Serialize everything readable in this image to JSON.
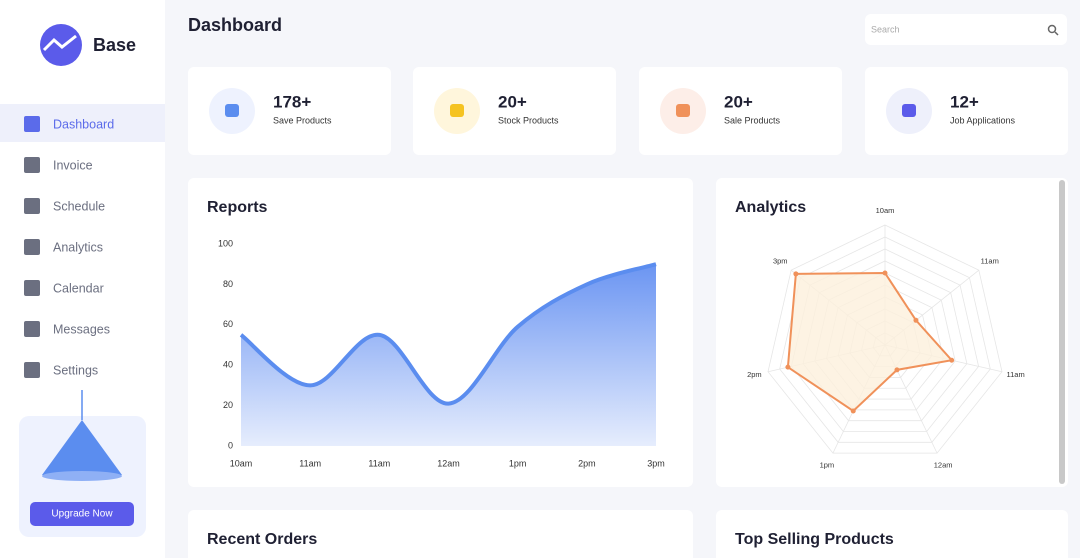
{
  "sidebar": {
    "brand": "Base",
    "menu": [
      "Dashboard",
      "Invoice",
      "Schedule",
      "Analytics",
      "Calendar",
      "Messages",
      "Settings"
    ],
    "upgrade_button": "Upgrade Now"
  },
  "header": {
    "title": "Dashboard",
    "search_placeholder": "Search"
  },
  "stats": [
    {
      "value": "178+",
      "label": "Save Products"
    },
    {
      "value": "20+",
      "label": "Stock Products"
    },
    {
      "value": "20+",
      "label": "Sale Products"
    },
    {
      "value": "12+",
      "label": "Job Applications"
    }
  ],
  "reports": {
    "title": "Reports",
    "chart_data": {
      "type": "area",
      "categories": [
        "10am",
        "11am",
        "11am",
        "12am",
        "1pm",
        "2pm",
        "3pm"
      ],
      "values": [
        55,
        30,
        55,
        21,
        59,
        80,
        90
      ],
      "color": "#5b8def",
      "ylim": [
        0,
        100
      ],
      "yticks": [
        0,
        20,
        40,
        60,
        80,
        100
      ]
    }
  },
  "analytics": {
    "title": "Analytics",
    "chart_data": {
      "type": "radar",
      "categories": [
        "10am",
        "11am",
        "11am",
        "12am",
        "1pm",
        "2pm",
        "3pm"
      ],
      "values": [
        60,
        33,
        57,
        23,
        61,
        83,
        95
      ],
      "color": "#f0915a",
      "ylim": [
        0,
        100
      ]
    }
  },
  "sections": [
    "Recent Orders",
    "Top Selling Products"
  ]
}
